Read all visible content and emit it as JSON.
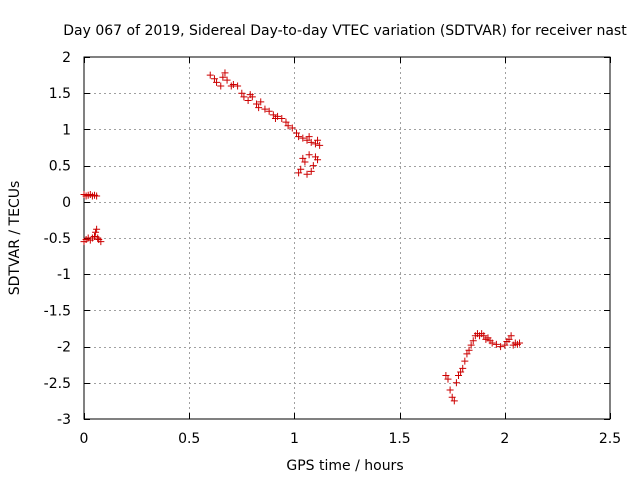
{
  "chart_data": {
    "type": "scatter",
    "title": "Day 067 of 2019, Sidereal Day-to-day VTEC variation (SDTVAR) for receiver nast",
    "xlabel": "GPS time / hours",
    "ylabel": "SDTVAR / TECUs",
    "xlim": [
      0,
      2.5
    ],
    "ylim": [
      -3,
      2
    ],
    "xticks": [
      0,
      0.5,
      1,
      1.5,
      2,
      2.5
    ],
    "xtick_labels": [
      "0",
      "0.5",
      "1",
      "1.5",
      "2",
      "2.5"
    ],
    "yticks": [
      -3,
      -2.5,
      -2,
      -1.5,
      -1,
      -0.5,
      0,
      0.5,
      1,
      1.5,
      2
    ],
    "ytick_labels": [
      "-3",
      "-2.5",
      "-2",
      "-1.5",
      "-1",
      "-0.5",
      "0",
      "0.5",
      "1",
      "1.5",
      "2"
    ],
    "grid": true,
    "marker": "plus",
    "marker_color": "#cc0000",
    "series": [
      {
        "name": "SDTVAR",
        "points": [
          [
            0.0,
            0.1
          ],
          [
            0.01,
            0.08
          ],
          [
            0.02,
            0.09
          ],
          [
            0.03,
            0.1
          ],
          [
            0.04,
            0.08
          ],
          [
            0.05,
            0.09
          ],
          [
            0.06,
            0.08
          ],
          [
            0.0,
            -0.55
          ],
          [
            0.01,
            -0.52
          ],
          [
            0.02,
            -0.5
          ],
          [
            0.03,
            -0.53
          ],
          [
            0.04,
            -0.5
          ],
          [
            0.05,
            -0.48
          ],
          [
            0.055,
            -0.42
          ],
          [
            0.06,
            -0.38
          ],
          [
            0.065,
            -0.5
          ],
          [
            0.07,
            -0.52
          ],
          [
            0.08,
            -0.55
          ],
          [
            0.6,
            1.75
          ],
          [
            0.62,
            1.7
          ],
          [
            0.63,
            1.65
          ],
          [
            0.65,
            1.6
          ],
          [
            0.66,
            1.72
          ],
          [
            0.67,
            1.78
          ],
          [
            0.68,
            1.68
          ],
          [
            0.7,
            1.6
          ],
          [
            0.71,
            1.62
          ],
          [
            0.73,
            1.6
          ],
          [
            0.75,
            1.5
          ],
          [
            0.76,
            1.45
          ],
          [
            0.78,
            1.4
          ],
          [
            0.79,
            1.48
          ],
          [
            0.8,
            1.45
          ],
          [
            0.82,
            1.35
          ],
          [
            0.83,
            1.3
          ],
          [
            0.84,
            1.38
          ],
          [
            0.86,
            1.28
          ],
          [
            0.88,
            1.25
          ],
          [
            0.9,
            1.2
          ],
          [
            0.91,
            1.15
          ],
          [
            0.92,
            1.18
          ],
          [
            0.94,
            1.15
          ],
          [
            0.96,
            1.1
          ],
          [
            0.97,
            1.05
          ],
          [
            0.99,
            1.02
          ],
          [
            1.01,
            0.95
          ],
          [
            1.02,
            0.9
          ],
          [
            1.04,
            0.88
          ],
          [
            1.06,
            0.85
          ],
          [
            1.07,
            0.9
          ],
          [
            1.08,
            0.82
          ],
          [
            1.1,
            0.8
          ],
          [
            1.11,
            0.85
          ],
          [
            1.12,
            0.78
          ],
          [
            1.02,
            0.4
          ],
          [
            1.03,
            0.45
          ],
          [
            1.04,
            0.6
          ],
          [
            1.05,
            0.55
          ],
          [
            1.06,
            0.38
          ],
          [
            1.07,
            0.65
          ],
          [
            1.08,
            0.42
          ],
          [
            1.09,
            0.5
          ],
          [
            1.1,
            0.62
          ],
          [
            1.11,
            0.58
          ],
          [
            1.72,
            -2.4
          ],
          [
            1.73,
            -2.45
          ],
          [
            1.74,
            -2.6
          ],
          [
            1.75,
            -2.7
          ],
          [
            1.76,
            -2.75
          ],
          [
            1.77,
            -2.5
          ],
          [
            1.78,
            -2.4
          ],
          [
            1.79,
            -2.35
          ],
          [
            1.8,
            -2.3
          ],
          [
            1.81,
            -2.2
          ],
          [
            1.82,
            -2.1
          ],
          [
            1.83,
            -2.05
          ],
          [
            1.84,
            -1.98
          ],
          [
            1.85,
            -1.92
          ],
          [
            1.86,
            -1.85
          ],
          [
            1.87,
            -1.82
          ],
          [
            1.88,
            -1.85
          ],
          [
            1.89,
            -1.82
          ],
          [
            1.9,
            -1.85
          ],
          [
            1.91,
            -1.9
          ],
          [
            1.92,
            -1.88
          ],
          [
            1.93,
            -1.92
          ],
          [
            1.94,
            -1.95
          ],
          [
            1.96,
            -1.97
          ],
          [
            1.98,
            -2.0
          ],
          [
            2.0,
            -1.98
          ],
          [
            2.01,
            -1.93
          ],
          [
            2.02,
            -1.9
          ],
          [
            2.03,
            -1.85
          ],
          [
            2.04,
            -1.98
          ],
          [
            2.05,
            -1.95
          ],
          [
            2.06,
            -1.97
          ],
          [
            2.07,
            -1.95
          ]
        ]
      }
    ]
  }
}
